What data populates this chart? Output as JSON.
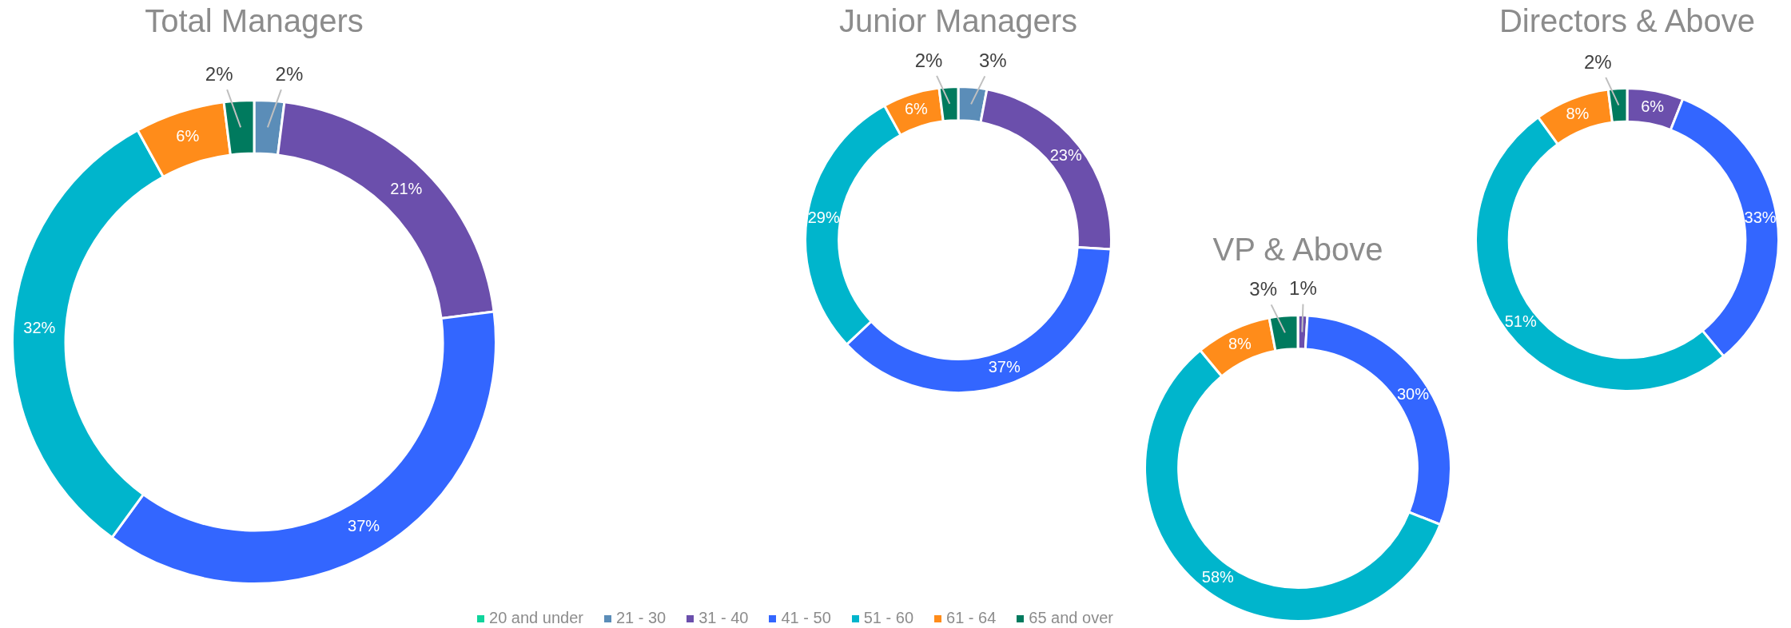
{
  "chart_data": [
    {
      "type": "donut",
      "title": "Total Managers",
      "legend": "bottom",
      "categories": [
        "20 and under",
        "21 - 30",
        "31 - 40",
        "41 - 50",
        "51 - 60",
        "61 - 64",
        "65 and over"
      ],
      "values": [
        0,
        2,
        21,
        37,
        32,
        6,
        2
      ],
      "colors": [
        "#10d49c",
        "#5b8db8",
        "#6b4fac",
        "#3366ff",
        "#00b5cc",
        "#ff8c1a",
        "#007a5e"
      ],
      "value_labels": [
        null,
        "2%",
        "21%",
        "37%",
        "32%",
        "6%",
        "2%"
      ]
    },
    {
      "type": "donut",
      "title": "Junior Managers",
      "categories": [
        null,
        null,
        null,
        null,
        null,
        null,
        null
      ],
      "values": [
        0,
        3,
        23,
        37,
        29,
        6,
        2
      ],
      "colors": [
        "#10d49c",
        "#5b8db8",
        "#6b4fac",
        "#3366ff",
        "#00b5cc",
        "#ff8c1a",
        "#007a5e"
      ],
      "value_labels": [
        null,
        "3%",
        "23%",
        "37%",
        "29%",
        "6%",
        "2%"
      ]
    },
    {
      "type": "donut",
      "title": "VP & Above",
      "categories": [
        null,
        null,
        null,
        null,
        null,
        null,
        null
      ],
      "values": [
        0,
        0,
        1,
        30,
        58,
        8,
        3
      ],
      "colors": [
        "#10d49c",
        "#5b8db8",
        "#6b4fac",
        "#3366ff",
        "#00b5cc",
        "#ff8c1a",
        "#007a5e"
      ],
      "value_labels": [
        null,
        null,
        "1%",
        "30%",
        "58%",
        "8%",
        "3%"
      ]
    },
    {
      "type": "donut",
      "title": "Directors & Above",
      "categories": [
        null,
        null,
        null,
        null,
        null,
        null,
        null
      ],
      "values": [
        0,
        0,
        6,
        33,
        51,
        8,
        2
      ],
      "colors": [
        "#10d49c",
        "#5b8db8",
        "#6b4fac",
        "#3366ff",
        "#00b5cc",
        "#ff8c1a",
        "#007a5e"
      ],
      "value_labels": [
        null,
        null,
        "6%",
        "33%",
        "51%",
        "8%",
        "2%"
      ]
    }
  ]
}
